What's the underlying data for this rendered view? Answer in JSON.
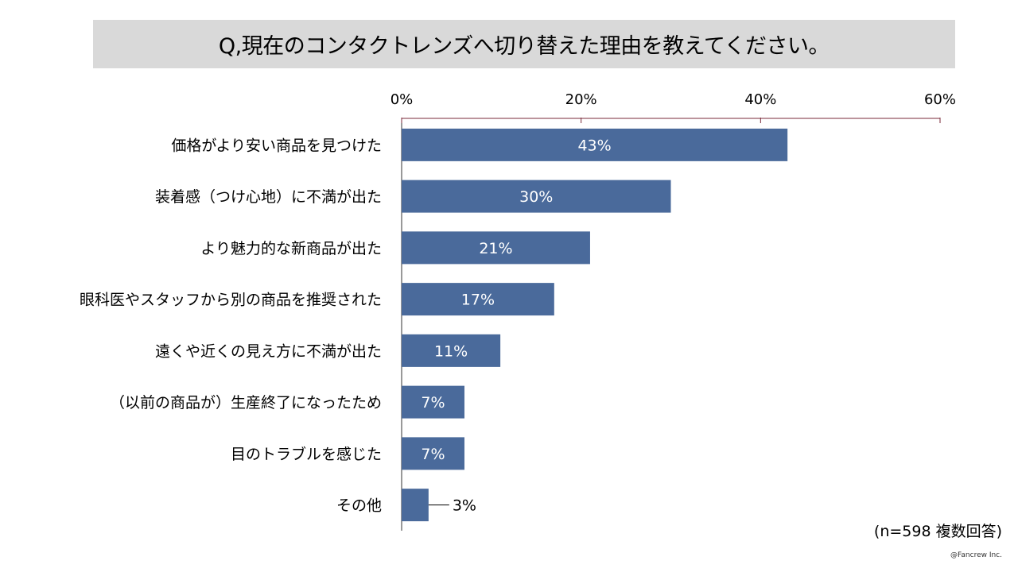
{
  "title": "Q,現在のコンタクトレンズへ切り替えた理由を教えてください。",
  "note": "(n=598  複数回答)",
  "copyright": "@Fancrew Inc.",
  "colors": {
    "bar": "#4a6a9b",
    "axis": "#7a2a3a",
    "title_bg": "#d9d9d9"
  },
  "chart_data": {
    "type": "bar",
    "orientation": "horizontal",
    "title": "Q,現在のコンタクトレンズへ切り替えた理由を教えてください。",
    "categories": [
      "価格がより安い商品を見つけた",
      "装着感（つけ心地）に不満が出た",
      "より魅力的な新商品が出た",
      "眼科医やスタッフから別の商品を推奨された",
      "遠くや近くの見え方に不満が出た",
      "（以前の商品が）生産終了になったため",
      "目のトラブルを感じた",
      "その他"
    ],
    "values": [
      43,
      30,
      21,
      17,
      11,
      7,
      7,
      3
    ],
    "value_labels": [
      "43%",
      "30%",
      "21%",
      "17%",
      "11%",
      "7%",
      "7%",
      "3%"
    ],
    "xlim": [
      0,
      60
    ],
    "ticks": [
      0,
      20,
      40,
      60
    ],
    "tick_labels": [
      "0%",
      "20%",
      "40%",
      "60%"
    ],
    "axis_position": "top",
    "grid": false,
    "legend": false
  }
}
